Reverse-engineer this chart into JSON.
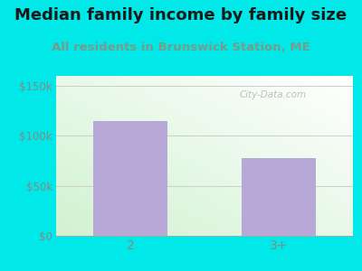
{
  "title": "Median family income by family size",
  "subtitle": "All residents in Brunswick Station, ME",
  "categories": [
    "2",
    "3+"
  ],
  "values": [
    115000,
    78000
  ],
  "bar_color": "#b8a8d8",
  "ylim": [
    0,
    160000
  ],
  "yticks": [
    0,
    50000,
    100000,
    150000
  ],
  "ytick_labels": [
    "$0",
    "$50k",
    "$100k",
    "$150k"
  ],
  "outer_bg_color": "#00e8e8",
  "title_fontsize": 13,
  "subtitle_fontsize": 9.5,
  "title_color": "#1a1a1a",
  "subtitle_color": "#7a9a8a",
  "watermark": "City-Data.com",
  "grid_color": "#cccccc",
  "tick_label_color": "#888888"
}
